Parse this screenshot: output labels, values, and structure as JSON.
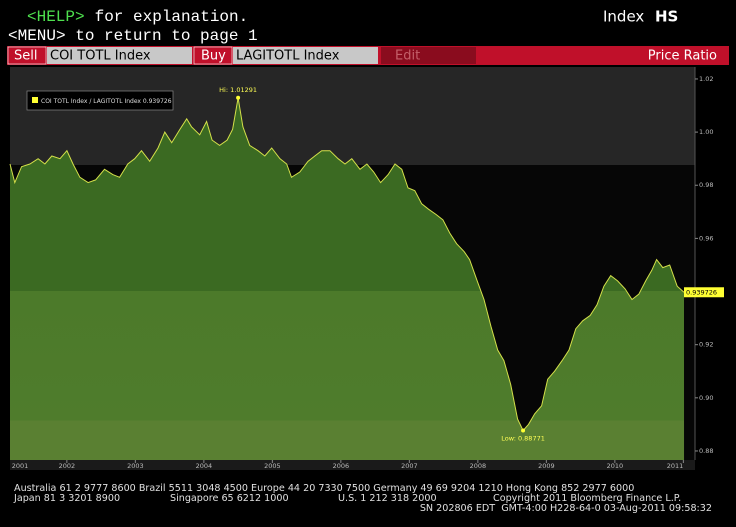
{
  "header": {
    "help_key": "<HELP>",
    "help_text": " for explanation.",
    "menu_line": "<MENU> to return to page 1",
    "screen_label": "Index",
    "screen_code": "HS"
  },
  "toolbar": {
    "sell": "Sell",
    "sell_ticker": "COI TOTL Index",
    "buy": "Buy",
    "buy_ticker": "LAGITOTL Index",
    "edit": "Edit",
    "mode": "Price Ratio"
  },
  "chart_data": {
    "type": "area",
    "annotations": {
      "high": "Hi:",
      "low": "Low:"
    },
    "xlim": [
      2001.17,
      2011.17
    ],
    "xticks": [
      2001,
      2002,
      2003,
      2004,
      2005,
      2006,
      2007,
      2008,
      2009,
      2010,
      2011
    ],
    "ylim": [
      0.8766,
      1.0245
    ],
    "yticks": [
      0.88,
      {
        "value": 0.9,
        "label": "0.90"
      },
      0.92,
      0.94,
      0.96,
      0.98,
      {
        "value": 1,
        "label": "1.00"
      },
      1.02
    ],
    "legend": "top-left",
    "series": [
      {
        "name": "COI TOTL Index / LAGITOTL Index",
        "color": "#d4e04a",
        "fill": "#4a7a28",
        "x": [
          2001.17,
          2001.24,
          2001.34,
          2001.46,
          2001.58,
          2001.68,
          2001.78,
          2001.9,
          2002.0,
          2002.09,
          2002.19,
          2002.31,
          2002.42,
          2002.55,
          2002.67,
          2002.77,
          2002.89,
          2002.99,
          2003.09,
          2003.21,
          2003.33,
          2003.43,
          2003.53,
          2003.65,
          2003.75,
          2003.82,
          2003.94,
          2004.04,
          2004.12,
          2004.23,
          2004.34,
          2004.42,
          2004.5,
          2004.57,
          2004.67,
          2004.79,
          2004.89,
          2004.99,
          2005.11,
          2005.21,
          2005.28,
          2005.4,
          2005.52,
          2005.62,
          2005.72,
          2005.84,
          2005.96,
          2006.06,
          2006.16,
          2006.28,
          2006.38,
          2006.48,
          2006.58,
          2006.69,
          2006.79,
          2006.89,
          2006.98,
          2007.08,
          2007.18,
          2007.28,
          2007.39,
          2007.49,
          2007.59,
          2007.69,
          2007.8,
          2007.88,
          2007.99,
          2008.09,
          2008.19,
          2008.29,
          2008.38,
          2008.48,
          2008.58,
          2008.66,
          2008.74,
          2008.83,
          2008.93,
          2009.02,
          2009.12,
          2009.23,
          2009.33,
          2009.43,
          2009.53,
          2009.64,
          2009.74,
          2009.84,
          2009.94,
          2010.04,
          2010.15,
          2010.25,
          2010.35,
          2010.45,
          2010.54,
          2010.61,
          2010.7,
          2010.8,
          2010.91,
          2011.01
        ],
        "values": [
          0.988,
          0.981,
          0.987,
          0.988,
          0.99,
          0.988,
          0.991,
          0.99,
          0.993,
          0.988,
          0.983,
          0.981,
          0.982,
          0.986,
          0.984,
          0.983,
          0.988,
          0.99,
          0.993,
          0.989,
          0.994,
          1.0,
          0.996,
          1.001,
          1.005,
          1.002,
          0.999,
          1.004,
          0.997,
          0.995,
          0.997,
          1.001,
          1.01291,
          1.002,
          0.995,
          0.993,
          0.991,
          0.994,
          0.99,
          0.988,
          0.983,
          0.985,
          0.989,
          0.991,
          0.993,
          0.993,
          0.99,
          0.988,
          0.99,
          0.986,
          0.988,
          0.985,
          0.981,
          0.984,
          0.988,
          0.986,
          0.979,
          0.978,
          0.973,
          0.971,
          0.969,
          0.967,
          0.962,
          0.958,
          0.955,
          0.952,
          0.944,
          0.937,
          0.927,
          0.918,
          0.914,
          0.905,
          0.892,
          0.88771,
          0.89,
          0.894,
          0.897,
          0.907,
          0.91,
          0.914,
          0.918,
          0.926,
          0.929,
          0.931,
          0.935,
          0.942,
          0.946,
          0.944,
          0.941,
          0.937,
          0.939,
          0.944,
          0.948,
          0.952,
          0.949,
          0.95,
          0.942,
          0.939726
        ]
      }
    ]
  },
  "footer": {
    "line1": "Australia 61 2 9777 8600 Brazil 5511 3048 4500 Europe 44 20 7330 7500 Germany 49 69 9204 1210 Hong Kong 852 2977 6000",
    "japan": "Japan 81 3 3201 8900",
    "singapore": "Singapore 65 6212 1000",
    "us": "U.S. 1 212 318 2000",
    "copyright": "Copyright 2011 Bloomberg Finance L.P.",
    "line3": "SN 202806 EDT  GMT-4:00 H228-64-0 03-Aug-2011 09:58:32"
  }
}
